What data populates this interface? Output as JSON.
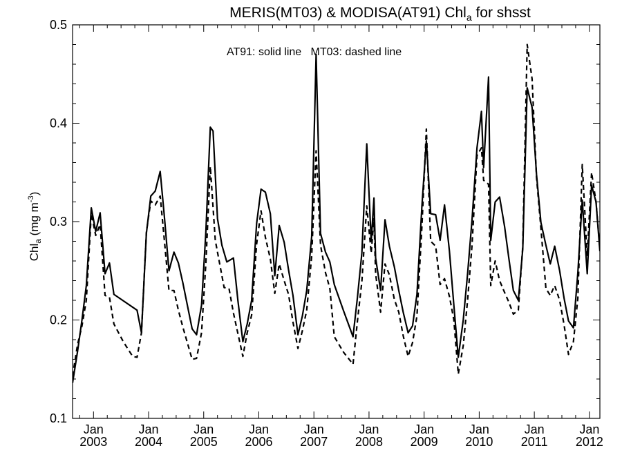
{
  "chart_data": {
    "type": "line",
    "title": "MERIS(MT03) & MODISA(AT91)  Chl",
    "title_sub": "a",
    "title_suffix": " for shsst",
    "ylabel_main": "Chl",
    "ylabel_sub": "a",
    "ylabel_units": " (mg m",
    "ylabel_sup": "-3",
    "ylabel_close": ")",
    "annotation": "AT91: solid line   MT03: dashed line",
    "ylim": [
      0.1,
      0.5
    ],
    "y_ticks": [
      "0.1",
      "0.2",
      "0.3",
      "0.4",
      "0.5"
    ],
    "x_ticks": [
      {
        "month": "Jan",
        "year": "2003",
        "t": 2003.0
      },
      {
        "month": "Jan",
        "year": "2004",
        "t": 2004.0
      },
      {
        "month": "Jan",
        "year": "2005",
        "t": 2005.0
      },
      {
        "month": "Jan",
        "year": "2006",
        "t": 2006.0
      },
      {
        "month": "Jan",
        "year": "2007",
        "t": 2007.0
      },
      {
        "month": "Jan",
        "year": "2008",
        "t": 2008.0
      },
      {
        "month": "Jan",
        "year": "2009",
        "t": 2009.0
      },
      {
        "month": "Jan",
        "year": "2010",
        "t": 2010.0
      },
      {
        "month": "Jan",
        "year": "2011",
        "t": 2011.0
      },
      {
        "month": "Jan",
        "year": "2012",
        "t": 2012.0
      }
    ],
    "xlim": [
      2002.62,
      2012.19
    ],
    "grid": false,
    "series": [
      {
        "name": "AT91",
        "style": "solid",
        "color": "#000000",
        "points": [
          [
            2002.62,
            0.136
          ],
          [
            2002.71,
            0.168
          ],
          [
            2002.79,
            0.2
          ],
          [
            2002.87,
            0.235
          ],
          [
            2002.96,
            0.314
          ],
          [
            2003.04,
            0.29
          ],
          [
            2003.12,
            0.309
          ],
          [
            2003.21,
            0.247
          ],
          [
            2003.29,
            0.258
          ],
          [
            2003.37,
            0.226
          ],
          [
            2003.79,
            0.21
          ],
          [
            2003.87,
            0.187
          ],
          [
            2003.96,
            0.288
          ],
          [
            2004.04,
            0.326
          ],
          [
            2004.12,
            0.331
          ],
          [
            2004.21,
            0.351
          ],
          [
            2004.29,
            0.303
          ],
          [
            2004.37,
            0.25
          ],
          [
            2004.46,
            0.269
          ],
          [
            2004.54,
            0.258
          ],
          [
            2004.62,
            0.238
          ],
          [
            2004.79,
            0.191
          ],
          [
            2004.87,
            0.185
          ],
          [
            2004.96,
            0.215
          ],
          [
            2005.04,
            0.29
          ],
          [
            2005.12,
            0.396
          ],
          [
            2005.17,
            0.392
          ],
          [
            2005.25,
            0.303
          ],
          [
            2005.33,
            0.276
          ],
          [
            2005.42,
            0.259
          ],
          [
            2005.54,
            0.263
          ],
          [
            2005.62,
            0.22
          ],
          [
            2005.71,
            0.178
          ],
          [
            2005.79,
            0.196
          ],
          [
            2005.87,
            0.22
          ],
          [
            2005.96,
            0.298
          ],
          [
            2006.04,
            0.333
          ],
          [
            2006.12,
            0.33
          ],
          [
            2006.21,
            0.308
          ],
          [
            2006.29,
            0.245
          ],
          [
            2006.37,
            0.296
          ],
          [
            2006.46,
            0.279
          ],
          [
            2006.54,
            0.251
          ],
          [
            2006.62,
            0.225
          ],
          [
            2006.71,
            0.185
          ],
          [
            2006.79,
            0.204
          ],
          [
            2006.87,
            0.23
          ],
          [
            2006.96,
            0.285
          ],
          [
            2007.04,
            0.47
          ],
          [
            2007.12,
            0.288
          ],
          [
            2007.21,
            0.269
          ],
          [
            2007.29,
            0.259
          ],
          [
            2007.37,
            0.236
          ],
          [
            2007.54,
            0.209
          ],
          [
            2007.71,
            0.183
          ],
          [
            2007.79,
            0.223
          ],
          [
            2007.87,
            0.268
          ],
          [
            2007.96,
            0.379
          ],
          [
            2008.04,
            0.28
          ],
          [
            2008.09,
            0.324
          ],
          [
            2008.12,
            0.263
          ],
          [
            2008.21,
            0.23
          ],
          [
            2008.29,
            0.302
          ],
          [
            2008.37,
            0.275
          ],
          [
            2008.46,
            0.254
          ],
          [
            2008.54,
            0.23
          ],
          [
            2008.62,
            0.208
          ],
          [
            2008.71,
            0.187
          ],
          [
            2008.79,
            0.194
          ],
          [
            2008.87,
            0.226
          ],
          [
            2008.96,
            0.316
          ],
          [
            2009.04,
            0.382
          ],
          [
            2009.12,
            0.308
          ],
          [
            2009.21,
            0.307
          ],
          [
            2009.29,
            0.281
          ],
          [
            2009.37,
            0.317
          ],
          [
            2009.46,
            0.27
          ],
          [
            2009.54,
            0.215
          ],
          [
            2009.62,
            0.162
          ],
          [
            2009.71,
            0.2
          ],
          [
            2009.79,
            0.248
          ],
          [
            2009.87,
            0.302
          ],
          [
            2009.96,
            0.375
          ],
          [
            2010.04,
            0.412
          ],
          [
            2010.08,
            0.355
          ],
          [
            2010.17,
            0.447
          ],
          [
            2010.21,
            0.281
          ],
          [
            2010.29,
            0.32
          ],
          [
            2010.37,
            0.325
          ],
          [
            2010.46,
            0.295
          ],
          [
            2010.54,
            0.262
          ],
          [
            2010.62,
            0.23
          ],
          [
            2010.71,
            0.22
          ],
          [
            2010.79,
            0.272
          ],
          [
            2010.87,
            0.436
          ],
          [
            2010.96,
            0.416
          ],
          [
            2011.04,
            0.348
          ],
          [
            2011.12,
            0.299
          ],
          [
            2011.21,
            0.276
          ],
          [
            2011.29,
            0.257
          ],
          [
            2011.37,
            0.275
          ],
          [
            2011.46,
            0.25
          ],
          [
            2011.54,
            0.222
          ],
          [
            2011.62,
            0.199
          ],
          [
            2011.71,
            0.192
          ],
          [
            2011.79,
            0.248
          ],
          [
            2011.87,
            0.322
          ],
          [
            2011.96,
            0.247
          ],
          [
            2012.04,
            0.337
          ],
          [
            2012.12,
            0.32
          ],
          [
            2012.19,
            0.27
          ]
        ]
      },
      {
        "name": "MT03",
        "style": "dashed",
        "color": "#000000",
        "points": [
          [
            2002.62,
            0.143
          ],
          [
            2002.71,
            0.175
          ],
          [
            2002.79,
            0.194
          ],
          [
            2002.87,
            0.22
          ],
          [
            2002.96,
            0.308
          ],
          [
            2003.04,
            0.286
          ],
          [
            2003.12,
            0.297
          ],
          [
            2003.21,
            0.225
          ],
          [
            2003.29,
            0.223
          ],
          [
            2003.37,
            0.196
          ],
          [
            2003.54,
            0.178
          ],
          [
            2003.71,
            0.163
          ],
          [
            2003.79,
            0.162
          ],
          [
            2003.87,
            0.187
          ],
          [
            2003.96,
            0.289
          ],
          [
            2004.04,
            0.321
          ],
          [
            2004.12,
            0.317
          ],
          [
            2004.21,
            0.326
          ],
          [
            2004.29,
            0.279
          ],
          [
            2004.37,
            0.23
          ],
          [
            2004.46,
            0.23
          ],
          [
            2004.54,
            0.21
          ],
          [
            2004.62,
            0.193
          ],
          [
            2004.79,
            0.16
          ],
          [
            2004.87,
            0.161
          ],
          [
            2004.96,
            0.187
          ],
          [
            2005.04,
            0.258
          ],
          [
            2005.12,
            0.356
          ],
          [
            2005.21,
            0.281
          ],
          [
            2005.29,
            0.257
          ],
          [
            2005.37,
            0.233
          ],
          [
            2005.46,
            0.232
          ],
          [
            2005.54,
            0.207
          ],
          [
            2005.71,
            0.163
          ],
          [
            2005.79,
            0.187
          ],
          [
            2005.87,
            0.205
          ],
          [
            2005.96,
            0.277
          ],
          [
            2006.04,
            0.311
          ],
          [
            2006.12,
            0.284
          ],
          [
            2006.21,
            0.262
          ],
          [
            2006.29,
            0.227
          ],
          [
            2006.37,
            0.257
          ],
          [
            2006.46,
            0.24
          ],
          [
            2006.54,
            0.226
          ],
          [
            2006.62,
            0.198
          ],
          [
            2006.71,
            0.171
          ],
          [
            2006.79,
            0.189
          ],
          [
            2006.87,
            0.21
          ],
          [
            2006.96,
            0.265
          ],
          [
            2007.04,
            0.372
          ],
          [
            2007.12,
            0.276
          ],
          [
            2007.21,
            0.248
          ],
          [
            2007.29,
            0.232
          ],
          [
            2007.37,
            0.183
          ],
          [
            2007.54,
            0.167
          ],
          [
            2007.71,
            0.155
          ],
          [
            2007.79,
            0.199
          ],
          [
            2007.87,
            0.239
          ],
          [
            2007.96,
            0.316
          ],
          [
            2008.04,
            0.268
          ],
          [
            2008.09,
            0.303
          ],
          [
            2008.12,
            0.247
          ],
          [
            2008.21,
            0.208
          ],
          [
            2008.29,
            0.257
          ],
          [
            2008.37,
            0.246
          ],
          [
            2008.46,
            0.221
          ],
          [
            2008.54,
            0.208
          ],
          [
            2008.62,
            0.184
          ],
          [
            2008.71,
            0.163
          ],
          [
            2008.79,
            0.177
          ],
          [
            2008.87,
            0.204
          ],
          [
            2008.96,
            0.295
          ],
          [
            2009.04,
            0.394
          ],
          [
            2009.12,
            0.28
          ],
          [
            2009.21,
            0.275
          ],
          [
            2009.29,
            0.236
          ],
          [
            2009.37,
            0.242
          ],
          [
            2009.46,
            0.224
          ],
          [
            2009.54,
            0.2
          ],
          [
            2009.62,
            0.145
          ],
          [
            2009.71,
            0.174
          ],
          [
            2009.79,
            0.221
          ],
          [
            2009.87,
            0.276
          ],
          [
            2009.96,
            0.367
          ],
          [
            2010.04,
            0.375
          ],
          [
            2010.08,
            0.342
          ],
          [
            2010.17,
            0.338
          ],
          [
            2010.21,
            0.235
          ],
          [
            2010.29,
            0.26
          ],
          [
            2010.37,
            0.24
          ],
          [
            2010.46,
            0.228
          ],
          [
            2010.54,
            0.218
          ],
          [
            2010.62,
            0.206
          ],
          [
            2010.71,
            0.21
          ],
          [
            2010.79,
            0.275
          ],
          [
            2010.87,
            0.48
          ],
          [
            2010.96,
            0.445
          ],
          [
            2011.04,
            0.345
          ],
          [
            2011.12,
            0.293
          ],
          [
            2011.21,
            0.232
          ],
          [
            2011.29,
            0.225
          ],
          [
            2011.37,
            0.235
          ],
          [
            2011.46,
            0.22
          ],
          [
            2011.54,
            0.195
          ],
          [
            2011.62,
            0.165
          ],
          [
            2011.71,
            0.178
          ],
          [
            2011.79,
            0.222
          ],
          [
            2011.87,
            0.358
          ],
          [
            2011.96,
            0.265
          ],
          [
            2012.04,
            0.35
          ],
          [
            2012.12,
            0.32
          ],
          [
            2012.19,
            0.272
          ]
        ]
      }
    ]
  }
}
